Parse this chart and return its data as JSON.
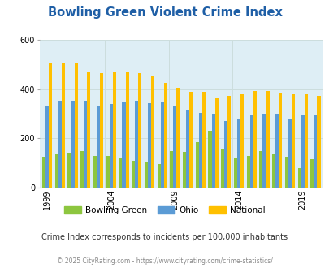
{
  "title": "Bowling Green Violent Crime Index",
  "years": [
    1999,
    2000,
    2001,
    2002,
    2003,
    2004,
    2005,
    2006,
    2007,
    2008,
    2009,
    2010,
    2011,
    2012,
    2013,
    2014,
    2015,
    2016,
    2017,
    2018,
    2019,
    2020
  ],
  "bowling_green": [
    125,
    135,
    140,
    150,
    130,
    128,
    120,
    110,
    105,
    95,
    148,
    145,
    185,
    230,
    160,
    120,
    130,
    150,
    135,
    125,
    80,
    115
  ],
  "ohio": [
    335,
    355,
    355,
    355,
    330,
    340,
    350,
    355,
    345,
    350,
    330,
    315,
    305,
    300,
    270,
    280,
    295,
    300,
    300,
    280,
    295,
    295
  ],
  "national": [
    510,
    510,
    505,
    470,
    465,
    470,
    470,
    465,
    455,
    425,
    405,
    390,
    390,
    365,
    375,
    380,
    395,
    395,
    385,
    380,
    380,
    375
  ],
  "bg_color": "#deeef5",
  "green_color": "#8dc63f",
  "blue_color": "#5b9bd5",
  "orange_color": "#ffc000",
  "title_color": "#1f5fa6",
  "subtitle": "Crime Index corresponds to incidents per 100,000 inhabitants",
  "footer": "© 2025 CityRating.com - https://www.cityrating.com/crime-statistics/",
  "ylim": [
    0,
    600
  ],
  "yticks": [
    0,
    200,
    400,
    600
  ],
  "xlabel_years": [
    1999,
    2004,
    2009,
    2014,
    2019
  ]
}
